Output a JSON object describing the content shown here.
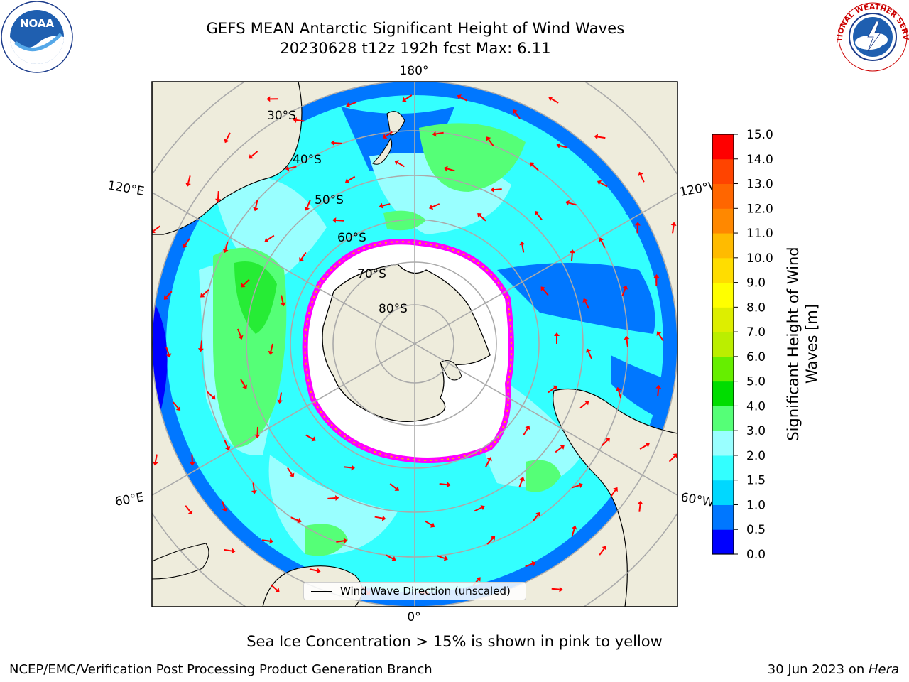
{
  "title": {
    "line1": "GEFS MEAN Antarctic Significant Height of Wind Waves",
    "line2": "20230628 t12z 192h fcst   Max: 6.11"
  },
  "map": {
    "projection": "south-polar-stereographic",
    "longitude_labels": [
      "180°",
      "0°",
      "120°E",
      "120°W",
      "60°E",
      "60°W"
    ],
    "latitude_labels": [
      "30°S",
      "40°S",
      "50°S",
      "60°S",
      "70°S",
      "80°S"
    ],
    "land_color": "#eeecdc",
    "ice_color": "#ffffff",
    "ice_edge_colors": [
      "#ff00ff",
      "#ff66cc",
      "#ffaa00",
      "#ffee00"
    ],
    "arrow_color": "#ff0000",
    "legend_label": "Wind Wave Direction (unscaled)"
  },
  "colorbar": {
    "label_line1": "Significant Height of Wind",
    "label_line2": "Waves [m]",
    "ticks": [
      "0.0",
      "0.5",
      "1.0",
      "1.5",
      "2.0",
      "3.0",
      "4.0",
      "5.0",
      "6.0",
      "7.0",
      "8.0",
      "9.0",
      "10.0",
      "11.0",
      "12.0",
      "13.0",
      "14.0",
      "15.0"
    ],
    "colors": [
      "#0000ff",
      "#0077ff",
      "#00d8ff",
      "#33ffff",
      "#99ffff",
      "#55ff77",
      "#00dd00",
      "#66ee00",
      "#bbee00",
      "#ddee00",
      "#ffff00",
      "#ffdd00",
      "#ffbb00",
      "#ff8800",
      "#ff6600",
      "#ff4400",
      "#ff0000"
    ]
  },
  "note": "Sea Ice Concentration > 15% is shown in pink to yellow",
  "footer": {
    "left": "NCEP/EMC/Verification Post Processing Product Generation Branch",
    "right_date": "30 Jun 2023 on ",
    "right_host": "Hera"
  },
  "logos": {
    "noaa_text": "NOAA",
    "nws_text": "NATIONAL WEATHER SERVICE"
  }
}
